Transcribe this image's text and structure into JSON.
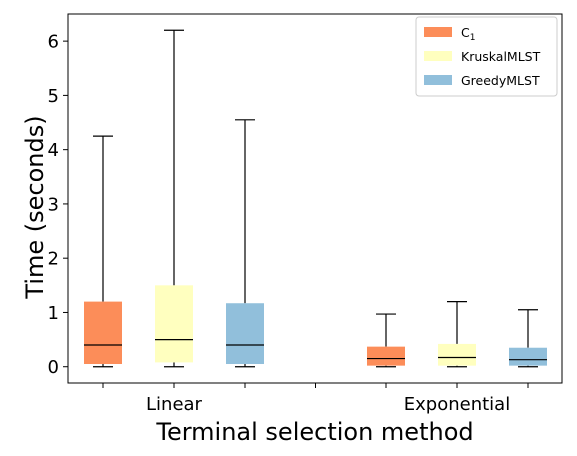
{
  "chart_data": {
    "type": "box",
    "xlabel": "Terminal selection method",
    "ylabel": "Time (seconds)",
    "ylim": [
      -0.3,
      6.5
    ],
    "yticks": [
      0,
      1,
      2,
      3,
      4,
      5,
      6
    ],
    "categories": [
      "Linear",
      "Exponential"
    ],
    "legend_position": "top-right",
    "grid": false,
    "series": [
      {
        "name": "C",
        "name_subscript": "1",
        "color": "#fc8d59",
        "boxes": [
          {
            "category": "Linear",
            "whisker_low": 0.0,
            "q1": 0.05,
            "median": 0.4,
            "q3": 1.2,
            "whisker_high": 4.25
          },
          {
            "category": "Exponential",
            "whisker_low": 0.0,
            "q1": 0.02,
            "median": 0.15,
            "q3": 0.37,
            "whisker_high": 0.97
          }
        ]
      },
      {
        "name": "KruskalMLST",
        "color": "#ffffbf",
        "boxes": [
          {
            "category": "Linear",
            "whisker_low": 0.0,
            "q1": 0.08,
            "median": 0.5,
            "q3": 1.5,
            "whisker_high": 6.2
          },
          {
            "category": "Exponential",
            "whisker_low": 0.0,
            "q1": 0.02,
            "median": 0.17,
            "q3": 0.42,
            "whisker_high": 1.2
          }
        ]
      },
      {
        "name": "GreedyMLST",
        "color": "#91bfdb",
        "boxes": [
          {
            "category": "Linear",
            "whisker_low": 0.0,
            "q1": 0.05,
            "median": 0.4,
            "q3": 1.17,
            "whisker_high": 4.55
          },
          {
            "category": "Exponential",
            "whisker_low": 0.0,
            "q1": 0.02,
            "median": 0.13,
            "q3": 0.35,
            "whisker_high": 1.05
          }
        ]
      }
    ]
  }
}
